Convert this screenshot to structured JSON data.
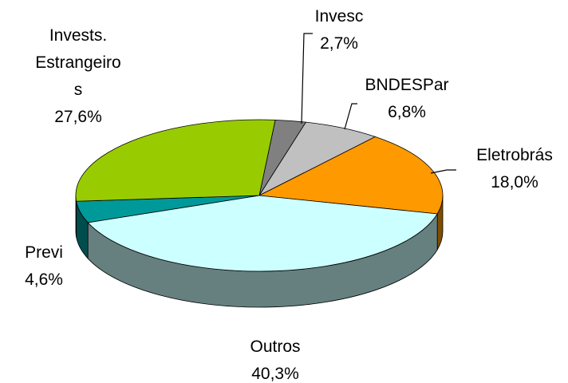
{
  "chart_data": {
    "type": "pie",
    "categories": [
      "Invesc",
      "BNDESPar",
      "Eletrobrás",
      "Outros",
      "Previ",
      "Invests. Estrangeiros"
    ],
    "values": [
      2.7,
      6.8,
      18.0,
      40.3,
      4.6,
      27.6
    ],
    "value_labels": [
      "2,7%",
      "6,8%",
      "18,0%",
      "40,3%",
      "4,6%",
      "27,6%"
    ],
    "colors": [
      "#808080",
      "#c0c0c0",
      "#ff9900",
      "#ccffff",
      "#009999",
      "#99cc00"
    ]
  }
}
